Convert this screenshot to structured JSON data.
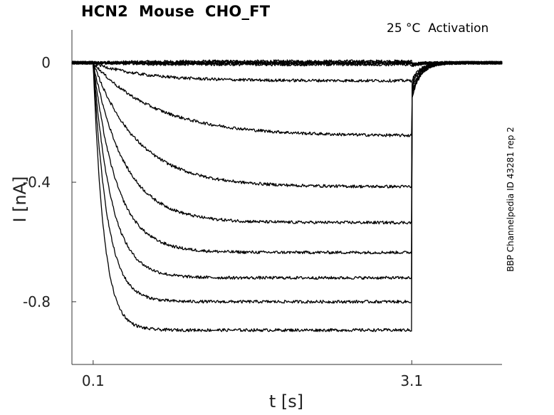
{
  "chart_data": {
    "type": "line",
    "title": "HCN2  Mouse  CHO_FT",
    "subtitle": "25 °C  Activation",
    "side_label": "BBP Channelpedia ID 43281 rep 2",
    "xlabel": "t [s]",
    "ylabel": "I [nA]",
    "xlim": [
      -0.1,
      3.95
    ],
    "ylim": [
      -1.01,
      0.11
    ],
    "xticks": [
      0.1,
      3.1
    ],
    "xtick_labels": [
      "0.1",
      "3.1"
    ],
    "yticks": [
      0,
      -0.4,
      -0.8
    ],
    "ytick_labels": [
      "0",
      "-0.4",
      "-0.8"
    ],
    "grid": false,
    "legend": "none",
    "step_on": 0.1,
    "step_off": 3.1,
    "line_color": "#000000",
    "series": [
      {
        "steady": 0.005,
        "tau": 0.5,
        "tail": 0.004
      },
      {
        "steady": 0.002,
        "tau": 0.5,
        "tail": 0.006
      },
      {
        "steady": 0.0,
        "tau": 0.5,
        "tail": 0.008
      },
      {
        "steady": -0.003,
        "tau": 0.5,
        "tail": 0.01
      },
      {
        "steady": -0.006,
        "tau": 0.5,
        "tail": 0.012
      },
      {
        "steady": -0.06,
        "tau": 0.45,
        "tail": 0.06
      },
      {
        "steady": -0.245,
        "tau": 0.6,
        "tail": 0.12
      },
      {
        "steady": -0.415,
        "tau": 0.42,
        "tail": 0.12
      },
      {
        "steady": -0.535,
        "tau": 0.3,
        "tail": 0.11
      },
      {
        "steady": -0.635,
        "tau": 0.22,
        "tail": 0.1
      },
      {
        "steady": -0.72,
        "tau": 0.17,
        "tail": 0.09
      },
      {
        "steady": -0.8,
        "tau": 0.13,
        "tail": 0.08
      },
      {
        "steady": -0.895,
        "tau": 0.1,
        "tail": 0.07
      }
    ]
  }
}
